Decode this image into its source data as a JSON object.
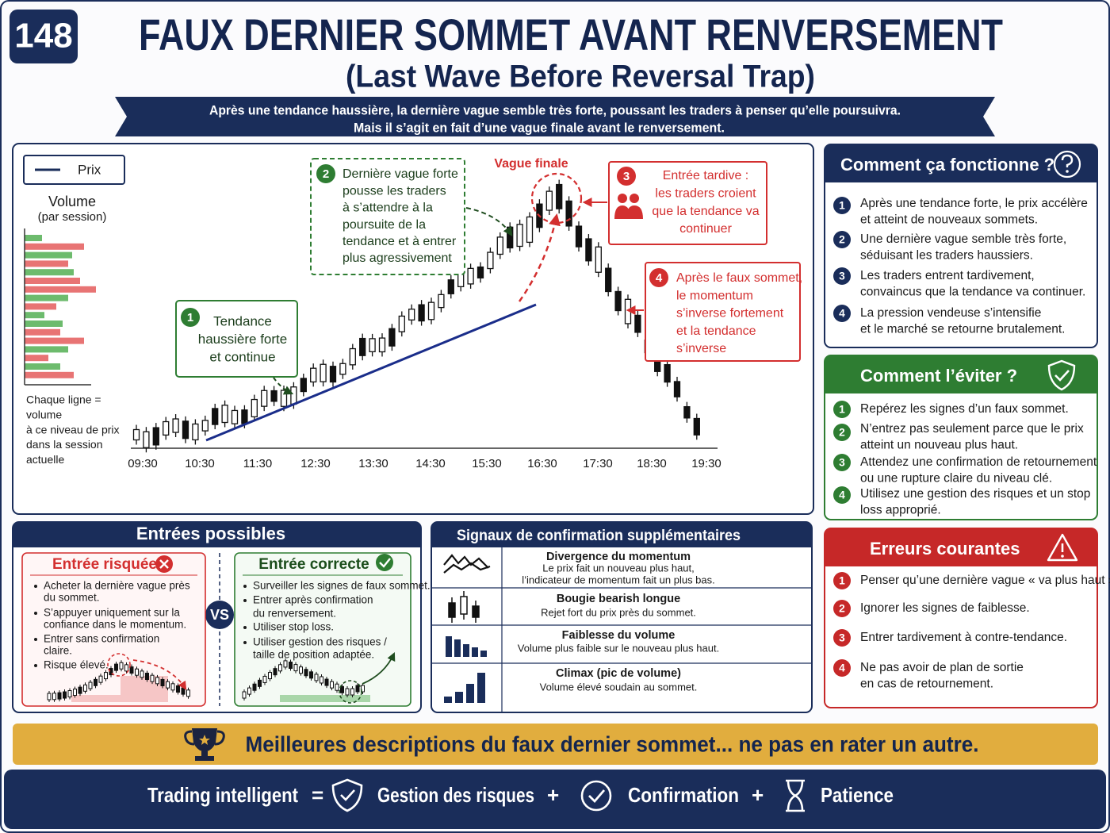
{
  "badge": "148",
  "header": {
    "title": "FAUX DERNIER SOMMET AVANT RENVERSEMENT",
    "subtitle": "(Last Wave Before Reversal Trap)",
    "banner": [
      "Après une tendance haussière, la dernière vague semble très forte, poussant les traders à penser qu’elle poursuivra.",
      "Mais il s’agit en fait d’une vague finale avant le renversement."
    ]
  },
  "chart": {
    "legend": "Prix",
    "volume_title": "Volume",
    "volume_subtitle": "(par session)",
    "volume_note": [
      "Chaque ligne =",
      "volume",
      "à ce niveau de prix",
      "dans la session",
      "actuelle"
    ],
    "x_labels": [
      "09:30",
      "10:30",
      "11:30",
      "12:30",
      "13:30",
      "14:30",
      "15:30",
      "16:30",
      "17:30",
      "18:30",
      "19:30"
    ],
    "peak_label": "Vague finale",
    "callouts": [
      {
        "number": "1",
        "lines": [
          "Tendance",
          "haussière forte",
          "et continue"
        ]
      },
      {
        "number": "2",
        "lines": [
          "Dernière vague forte",
          "pousse les traders",
          "à s’attendre à la",
          "poursuite de la",
          "tendance et à entrer",
          "plus agressivement"
        ]
      },
      {
        "number": "3",
        "lines": [
          "Entrée tardive :",
          "les traders croient",
          "que la tendance va",
          "continuer"
        ]
      },
      {
        "number": "4",
        "lines": [
          "Après le faux sommet,",
          "le momentum",
          "s’inverse fortement",
          "et la tendance",
          "s’inverse"
        ]
      }
    ]
  },
  "how": {
    "title": "Comment ça fonctionne ?",
    "items": [
      {
        "number": "1",
        "lines": [
          "Après une tendance forte, le prix accélère",
          "et atteint de nouveaux sommets."
        ]
      },
      {
        "number": "2",
        "lines": [
          "Une dernière vague semble très forte,",
          "séduisant les traders haussiers."
        ]
      },
      {
        "number": "3",
        "lines": [
          "Les traders entrent tardivement,",
          "convaincus que la tendance va continuer."
        ]
      },
      {
        "number": "4",
        "lines": [
          "La pression vendeuse s’intensifie",
          "et le marché se retourne brutalement."
        ]
      }
    ]
  },
  "avoid": {
    "title": "Comment l’éviter ?",
    "items": [
      {
        "number": "1",
        "lines": [
          "Repérez les signes d’un faux sommet."
        ]
      },
      {
        "number": "2",
        "lines": [
          "N’entrez pas seulement parce que le prix",
          "atteint un nouveau plus haut."
        ]
      },
      {
        "number": "3",
        "lines": [
          "Attendez une confirmation de retournement",
          "ou une rupture claire du niveau clé."
        ]
      },
      {
        "number": "4",
        "lines": [
          "Utilisez une gestion des risques et un stop",
          "loss approprié."
        ]
      }
    ]
  },
  "errors": {
    "title": "Erreurs courantes",
    "items": [
      {
        "number": "1",
        "lines": [
          "Penser qu’une dernière vague « va plus haut »."
        ]
      },
      {
        "number": "2",
        "lines": [
          "Ignorer les signes de faiblesse."
        ]
      },
      {
        "number": "3",
        "lines": [
          "Entrer tardivement à contre-tendance."
        ]
      },
      {
        "number": "4",
        "lines": [
          "Ne pas avoir de plan de sortie",
          "en cas de retournement."
        ]
      }
    ]
  },
  "entries": {
    "title": "Entrées possibles",
    "vs": "VS",
    "risky": {
      "title": "Entrée risquée",
      "bullets": [
        [
          "Acheter la dernière vague près",
          "du sommet."
        ],
        [
          "S’appuyer uniquement sur la",
          "confiance dans le momentum."
        ],
        [
          "Entrer sans confirmation",
          "claire."
        ],
        [
          "Risque élevé."
        ]
      ]
    },
    "correct": {
      "title": "Entrée correcte",
      "bullets": [
        [
          "Surveiller les signes de faux sommet."
        ],
        [
          "Entrer après confirmation",
          "du renversement."
        ],
        [
          "Utiliser stop loss."
        ],
        [
          "Utiliser gestion des risques /",
          "taille de position adaptée."
        ]
      ]
    }
  },
  "signals": {
    "title": "Signaux de confirmation supplémentaires",
    "rows": [
      {
        "title": "Divergence du momentum",
        "desc": [
          "Le prix fait un nouveau plus haut,",
          "l’indicateur de momentum fait un plus bas."
        ]
      },
      {
        "title": "Bougie bearish longue",
        "desc": [
          "Rejet fort du prix près du sommet."
        ]
      },
      {
        "title": "Faiblesse du volume",
        "desc": [
          "Volume plus faible sur le nouveau plus haut."
        ]
      },
      {
        "title": "Climax (pic de volume)",
        "desc": [
          "Volume élevé soudain au sommet."
        ]
      }
    ]
  },
  "gold_banner": "Meilleures descriptions du faux dernier sommet... ne pas en rater un autre.",
  "footer": {
    "part1": "Trading intelligent",
    "equals": "=",
    "part2": "Gestion des risques",
    "plus1": "+",
    "part3": "Confirmation",
    "plus2": "+",
    "part4": "Patience"
  }
}
